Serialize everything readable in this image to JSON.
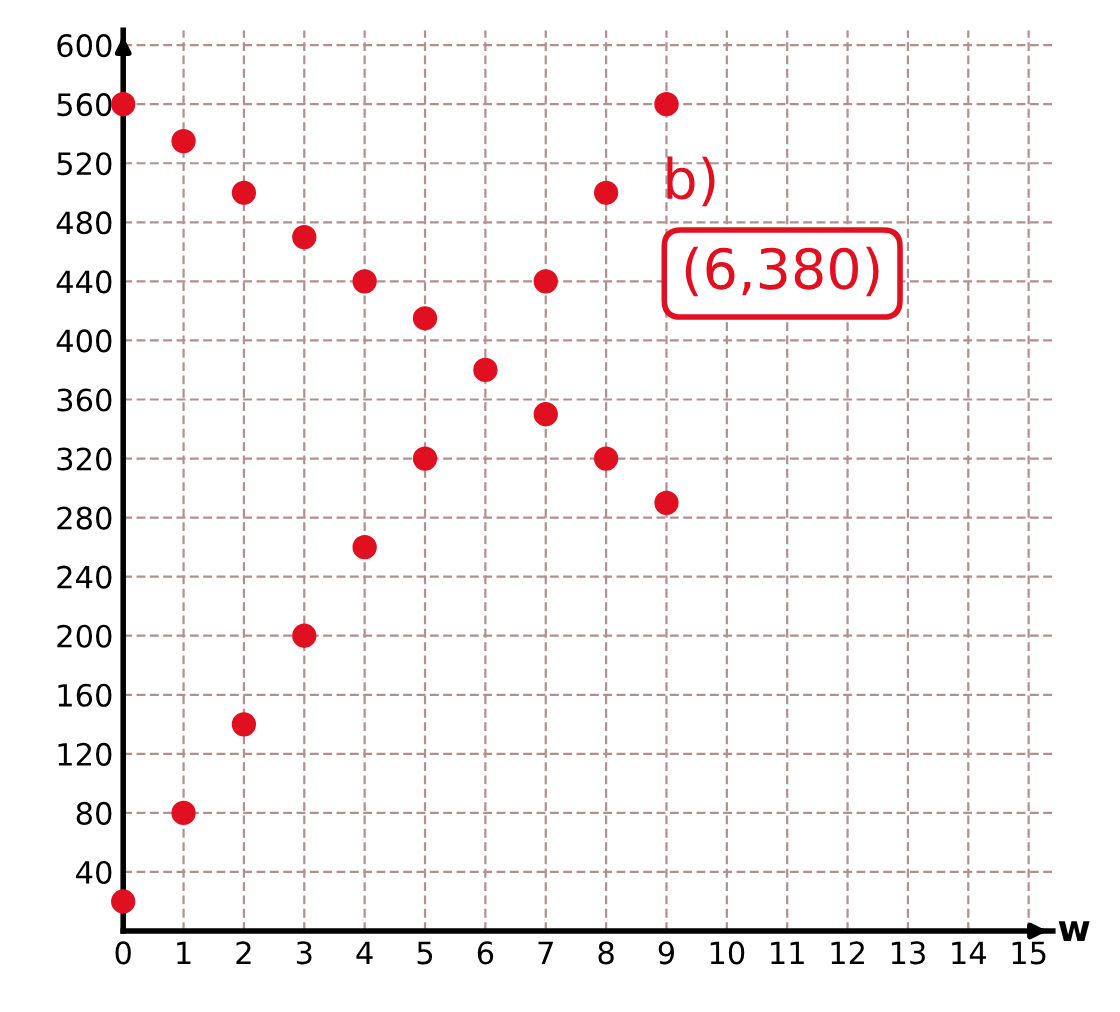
{
  "chart_data": {
    "type": "scatter",
    "xlabel": "w",
    "x": [
      0,
      0,
      1,
      1,
      2,
      2,
      3,
      3,
      4,
      4,
      5,
      5,
      6,
      7,
      7,
      8,
      8,
      9,
      9
    ],
    "values": [
      560,
      20,
      535,
      80,
      500,
      140,
      470,
      200,
      440,
      260,
      415,
      320,
      380,
      440,
      350,
      500,
      320,
      560,
      290
    ],
    "color": "#e01020",
    "marker": "circle",
    "xlim": [
      0,
      15.4
    ],
    "ylim": [
      0,
      610
    ],
    "xticks": [
      0,
      1,
      2,
      3,
      4,
      5,
      6,
      7,
      8,
      9,
      10,
      11,
      12,
      13,
      14,
      15
    ],
    "yticks": [
      40,
      80,
      120,
      160,
      200,
      240,
      280,
      320,
      360,
      400,
      440,
      480,
      520,
      560,
      600
    ],
    "grid": true,
    "annotations": [
      "b)",
      "(6,380)"
    ]
  }
}
